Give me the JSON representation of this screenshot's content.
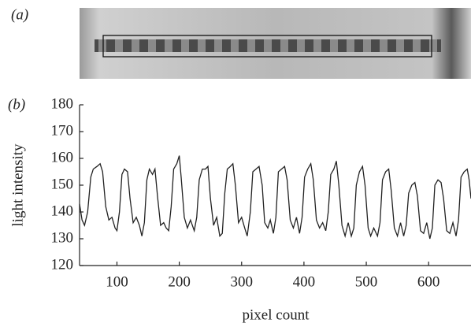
{
  "panels": {
    "a": "(a)",
    "b": "(b)"
  },
  "chart_data": {
    "type": "line",
    "xlabel": "pixel count",
    "ylabel": "light intensity",
    "x": [
      40,
      44,
      48,
      53,
      58,
      62,
      68,
      73,
      77,
      82,
      87,
      92,
      97,
      100,
      104,
      108,
      112,
      117,
      121,
      126,
      131,
      136,
      140,
      144,
      148,
      152,
      157,
      161,
      165,
      170,
      175,
      179,
      183,
      187,
      191,
      196,
      200,
      203,
      208,
      213,
      218,
      224,
      228,
      232,
      237,
      242,
      246,
      250,
      255,
      260,
      265,
      269,
      273,
      277,
      282,
      286,
      290,
      295,
      300,
      305,
      309,
      314,
      318,
      323,
      328,
      333,
      337,
      342,
      346,
      351,
      355,
      359,
      364,
      369,
      373,
      378,
      383,
      388,
      393,
      397,
      401,
      406,
      411,
      415,
      420,
      425,
      430,
      435,
      439,
      443,
      448,
      452,
      456,
      461,
      466,
      471,
      476,
      480,
      484,
      489,
      494,
      498,
      503,
      507,
      512,
      518,
      522,
      526,
      531,
      536,
      540,
      545,
      550,
      555,
      560,
      564,
      568,
      573,
      578,
      582,
      587,
      592,
      597,
      602,
      606,
      610,
      615,
      620,
      624,
      629,
      634,
      639,
      644,
      648,
      652,
      657,
      662,
      665,
      668
    ],
    "series": [
      {
        "color": "#222222",
        "values": [
          143,
          137,
          135,
          140,
          153,
          156,
          157,
          158,
          155,
          142,
          137,
          138,
          134,
          133,
          140,
          154,
          156,
          155,
          145,
          136,
          138,
          135,
          131,
          136,
          152,
          156,
          154,
          156,
          146,
          135,
          136,
          134,
          133,
          142,
          156,
          158,
          161,
          153,
          138,
          134,
          137,
          133,
          138,
          152,
          156,
          156,
          157,
          145,
          135,
          138,
          131,
          132,
          147,
          156,
          157,
          158,
          150,
          136,
          138,
          134,
          131,
          140,
          155,
          156,
          157,
          150,
          136,
          134,
          137,
          132,
          138,
          155,
          156,
          157,
          152,
          137,
          134,
          138,
          132,
          138,
          153,
          156,
          158,
          152,
          137,
          134,
          136,
          133,
          140,
          154,
          156,
          159,
          150,
          135,
          131,
          136,
          131,
          134,
          150,
          155,
          157,
          150,
          134,
          131,
          134,
          131,
          136,
          152,
          155,
          156,
          148,
          134,
          131,
          136,
          131,
          135,
          147,
          150,
          151,
          146,
          133,
          132,
          136,
          130,
          134,
          150,
          152,
          151,
          145,
          133,
          132,
          136,
          131,
          137,
          153,
          155,
          156,
          152,
          145
        ]
      }
    ],
    "xlim": [
      40,
      668
    ],
    "ylim": [
      120,
      180
    ],
    "xticks": [
      100,
      200,
      300,
      400,
      500,
      600
    ],
    "yticks": [
      120,
      130,
      140,
      150,
      160,
      170,
      180
    ]
  }
}
